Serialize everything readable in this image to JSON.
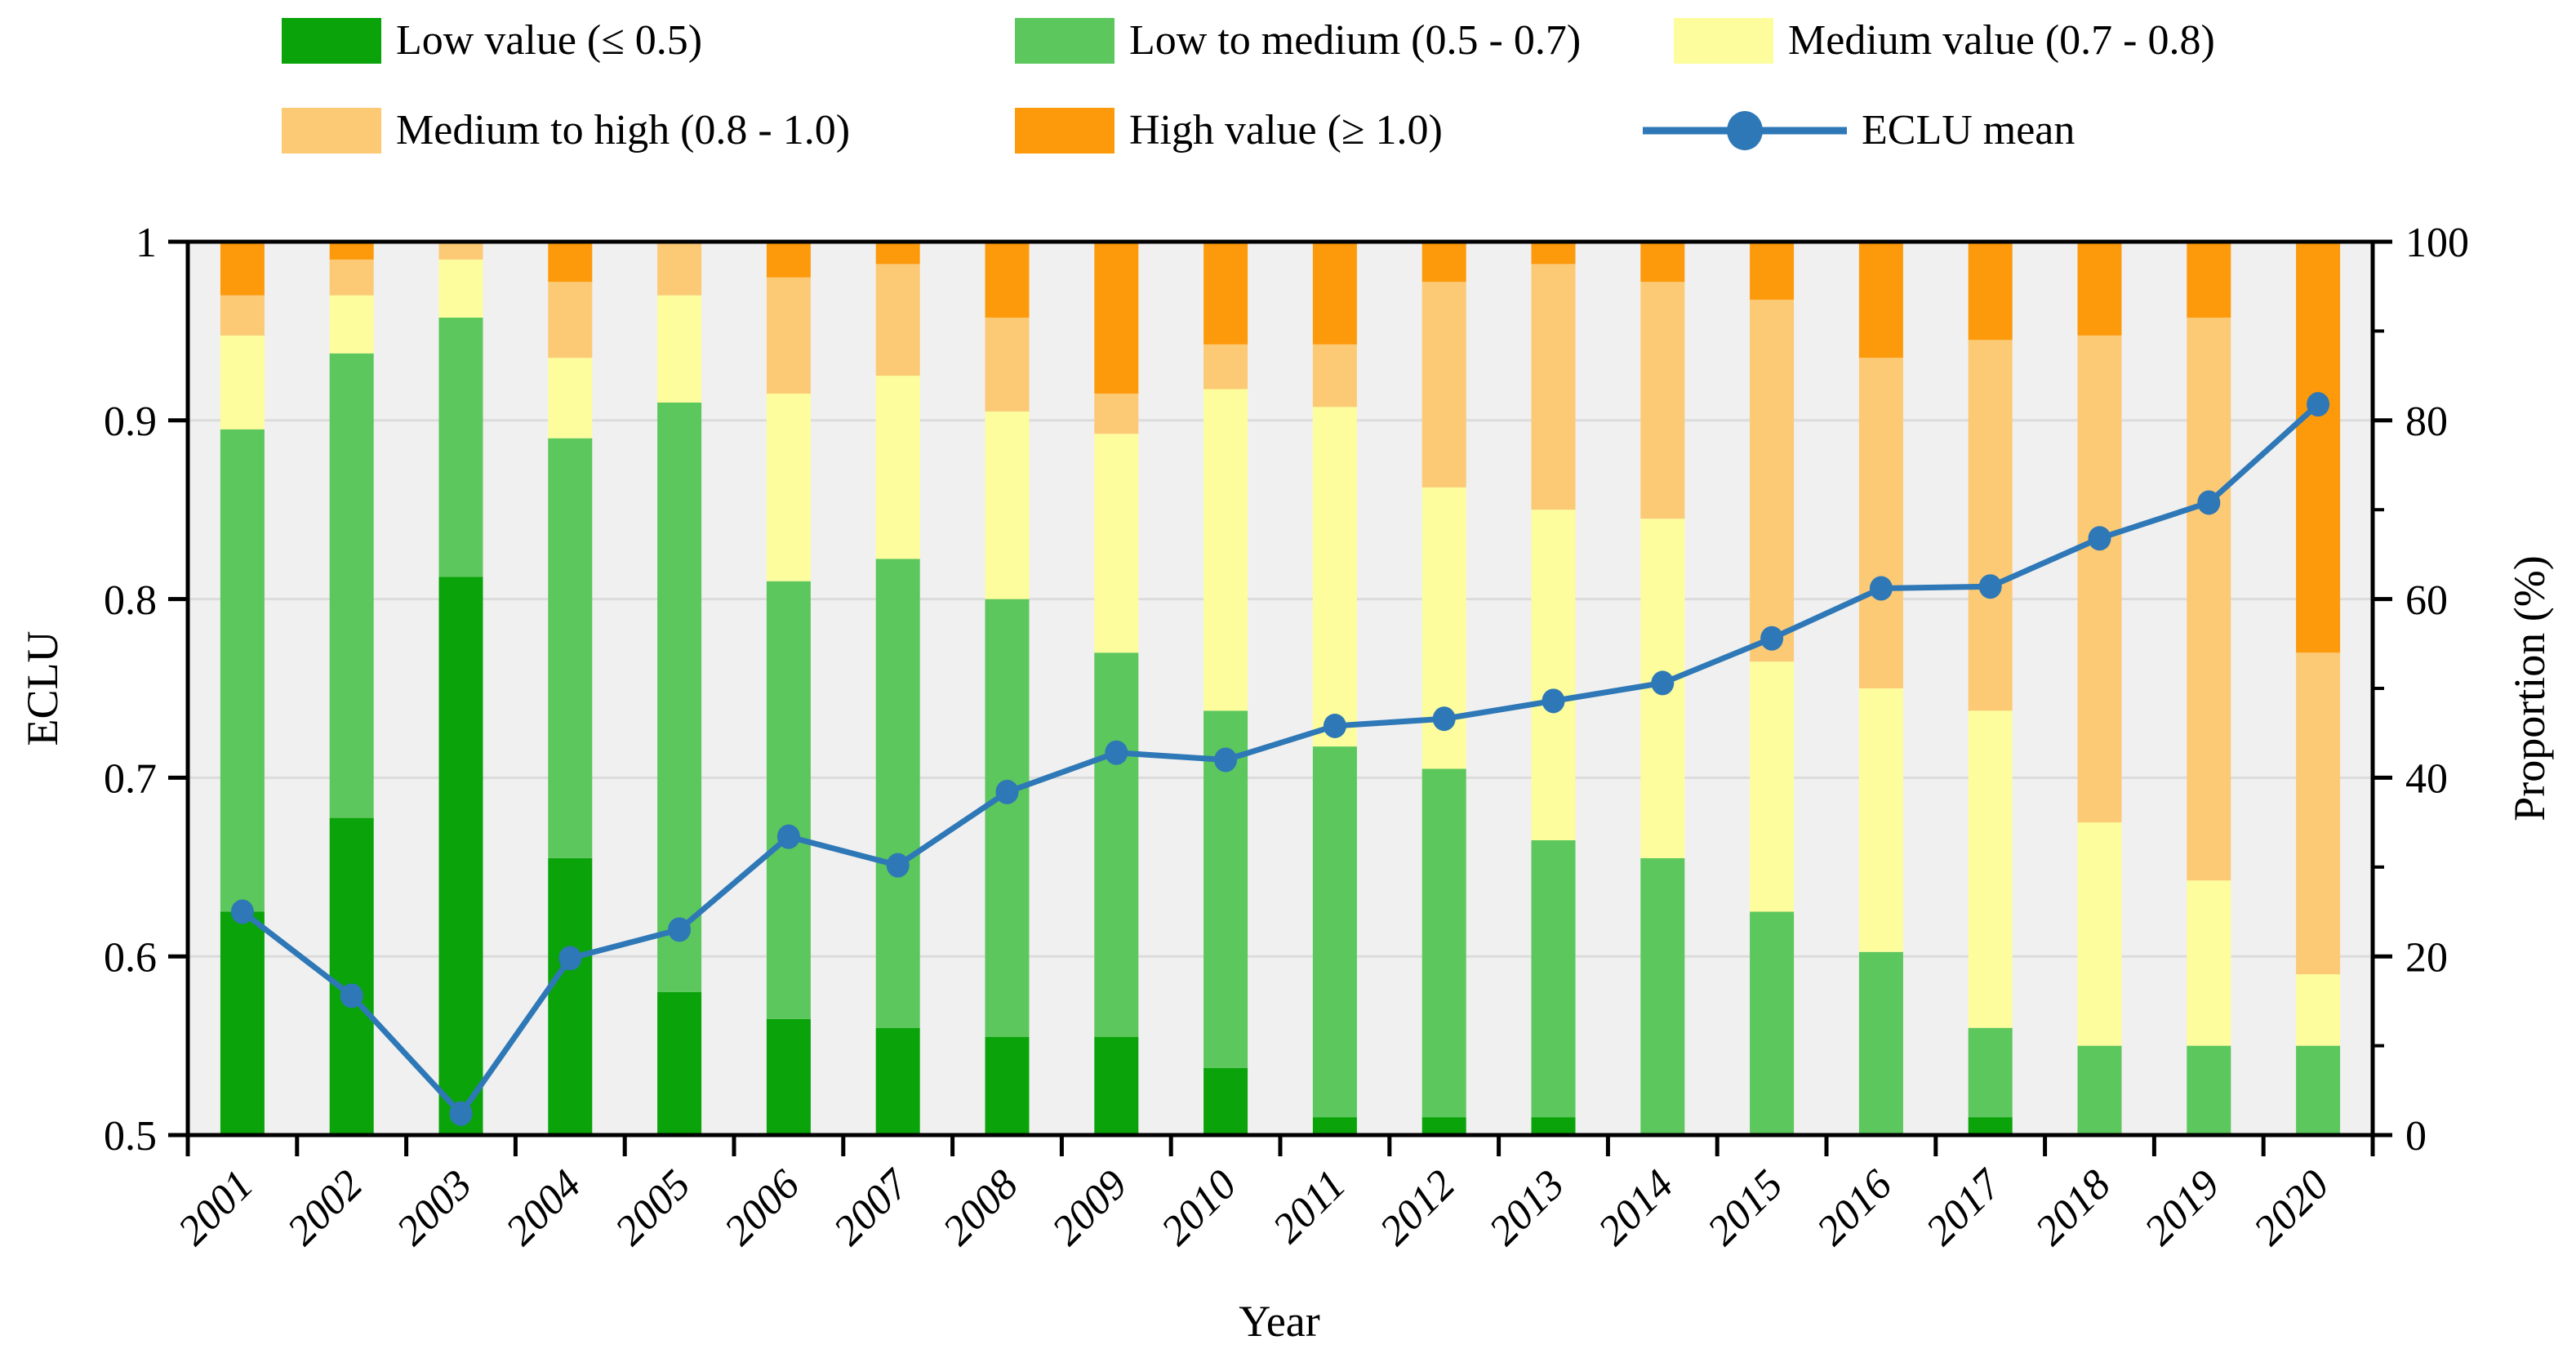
{
  "figure": {
    "kind": "stacked bar chart with line overlay"
  },
  "legend": {
    "items": [
      {
        "label": "Low value (≤ 0.5)",
        "marker": "swatch",
        "color": "#0aa30a"
      },
      {
        "label": "Low to medium  (0.5 - 0.7)",
        "marker": "swatch",
        "color": "#5cc75c"
      },
      {
        "label": "Medium value (0.7 - 0.8)",
        "marker": "swatch",
        "color": "#fdfd9d"
      },
      {
        "label": "Medium to high  (0.8 - 1.0)",
        "marker": "swatch",
        "color": "#fcca74"
      },
      {
        "label": "High value (≥ 1.0)",
        "marker": "swatch",
        "color": "#fd9a0c"
      },
      {
        "label": "ECLU mean",
        "marker": "line-dot",
        "color": "#2e78b7"
      }
    ]
  },
  "chart_data": {
    "type": "stacked-bar-line",
    "title": "",
    "categories": [
      "2001",
      "2002",
      "2003",
      "2004",
      "2005",
      "2006",
      "2007",
      "2008",
      "2009",
      "2010",
      "2011",
      "2012",
      "2013",
      "2014",
      "2015",
      "2016",
      "2017",
      "2018",
      "2019",
      "2020"
    ],
    "units": "percent of area (right axis); stacked segments sum to 100",
    "series": [
      {
        "name": "Low value (≤ 0.5)",
        "color": "#0aa30a",
        "values": [
          25,
          35.5,
          62.5,
          31,
          16,
          13,
          12,
          11,
          11,
          7.5,
          2,
          2,
          2,
          0,
          0,
          0,
          2,
          0,
          0,
          0
        ]
      },
      {
        "name": "Low to medium  (0.5 - 0.7)",
        "color": "#5cc75c",
        "values": [
          54,
          52,
          29,
          47,
          66,
          49,
          52.5,
          49,
          43,
          40,
          41.5,
          39,
          31,
          31,
          25,
          20.5,
          10,
          10,
          10,
          10
        ]
      },
      {
        "name": "Medium value (0.7 - 0.8)",
        "color": "#fdfd9d",
        "values": [
          10.5,
          6.5,
          6.5,
          9,
          12,
          21,
          20.5,
          21,
          24.5,
          36,
          38,
          31.5,
          37,
          38,
          28,
          29.5,
          35.5,
          25,
          18.5,
          8
        ]
      },
      {
        "name": "Medium to high  (0.8 - 1.0)",
        "color": "#fcca74",
        "values": [
          4.5,
          4,
          2,
          8.5,
          6,
          13,
          12.5,
          10.5,
          4.5,
          5,
          7,
          23,
          27.5,
          26.5,
          40.5,
          37,
          41.5,
          54.5,
          63,
          36
        ]
      },
      {
        "name": "High value (≥ 1.0)",
        "color": "#fd9a0c",
        "values": [
          6,
          2,
          0,
          4.5,
          0,
          4,
          2.5,
          8.5,
          17,
          11.5,
          11.5,
          4.5,
          2.5,
          4.5,
          6.5,
          13,
          11,
          10.5,
          8.5,
          46
        ]
      }
    ],
    "line_series": {
      "name": "ECLU mean",
      "color": "#2e78b7",
      "axis": "left",
      "values": [
        0.625,
        0.578,
        0.512,
        0.599,
        0.615,
        0.667,
        0.651,
        0.692,
        0.714,
        0.71,
        0.729,
        0.733,
        0.743,
        0.753,
        0.778,
        0.806,
        0.807,
        0.834,
        0.854,
        0.909
      ]
    },
    "axes": {
      "left": {
        "label": "ECLU",
        "min": 0.5,
        "max": 1.0,
        "tick_labels": [
          "0.5",
          "0.6",
          "0.7",
          "0.8",
          "0.9",
          "1"
        ]
      },
      "right": {
        "label": "Proportion (%)",
        "min": 0,
        "max": 100,
        "tick_labels": [
          "0",
          "20",
          "40",
          "60",
          "80",
          "100"
        ],
        "minor_ticks": [
          10,
          30,
          50,
          70,
          90
        ]
      },
      "bottom": {
        "label": "Year"
      }
    },
    "grid": {
      "y_percent": [
        20,
        40,
        60,
        80
      ],
      "color": "#dcdcdc"
    },
    "plot_bg": "#f0f0f0",
    "frame_color": "#000000"
  }
}
